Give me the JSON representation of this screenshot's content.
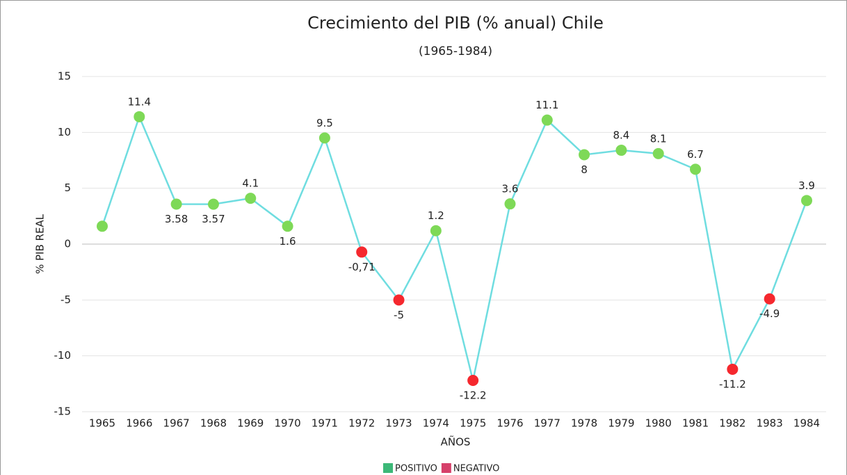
{
  "chart_data": {
    "type": "line",
    "title": "Crecimiento del PIB (% anual) Chile",
    "subtitle": "(1965-1984)",
    "y_label": "% PIB REAL",
    "x_label": "AÑOS",
    "categories": [
      "1965",
      "1966",
      "1967",
      "1968",
      "1969",
      "1970",
      "1971",
      "1972",
      "1973",
      "1974",
      "1975",
      "1976",
      "1977",
      "1978",
      "1979",
      "1980",
      "1981",
      "1982",
      "1983",
      "1984"
    ],
    "values": [
      1.6,
      11.4,
      3.58,
      3.57,
      4.1,
      1.6,
      9.5,
      -0.71,
      -5,
      1.2,
      -12.2,
      3.6,
      11.1,
      8,
      8.4,
      8.1,
      6.7,
      -11.2,
      -4.9,
      3.9
    ],
    "value_labels": [
      null,
      "11.4",
      "3.58",
      "3.57",
      "4.1",
      "1.6",
      "9.5",
      "-0,71",
      "-5",
      "1.2",
      "-12.2",
      "3.6",
      "11.1",
      "8",
      "8.4",
      "8.1",
      "6.7",
      "-11.2",
      "-4.9",
      "3.9"
    ],
    "line_color": "#6fdde0",
    "positive_color": "#7ed957",
    "negative_color": "#f5282e",
    "legend": [
      {
        "name": "POSITIVO",
        "color": "#3cb878"
      },
      {
        "name": "NEGATIVO",
        "color": "#d6406a"
      }
    ],
    "ylim": [
      -15,
      15
    ],
    "yticks": [
      -15,
      -10,
      -5,
      0,
      5,
      10,
      15
    ],
    "grid": true
  }
}
